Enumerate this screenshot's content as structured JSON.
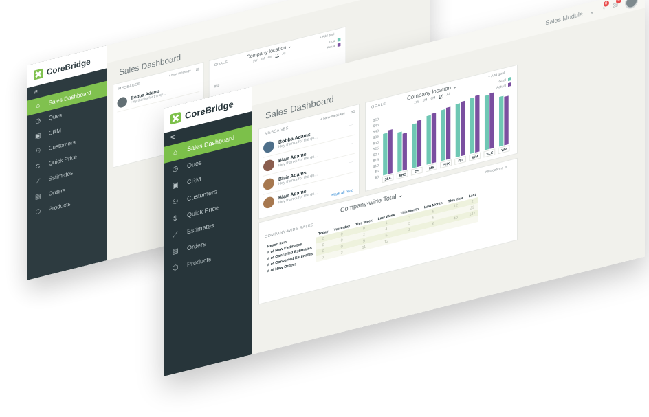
{
  "app": {
    "logo_text": "CoreBridge",
    "page_title": "Sales Dashboard"
  },
  "topbar": {
    "module_label": "Sales Module",
    "notif_count": "0",
    "msg_count": "4"
  },
  "nav": {
    "menu_icon": "hamburger-icon",
    "items": [
      {
        "label": "Sales Dashboard",
        "icon": "home-icon",
        "glyph": "⌂"
      },
      {
        "label": "Ques",
        "icon": "stopwatch-icon",
        "glyph": "◷"
      },
      {
        "label": "CRM",
        "icon": "id-card-icon",
        "glyph": "▣"
      },
      {
        "label": "Customers",
        "icon": "users-icon",
        "glyph": "⚇"
      },
      {
        "label": "Quick Price",
        "icon": "dollar-icon",
        "glyph": "$"
      },
      {
        "label": "Estimates",
        "icon": "line-chart-icon",
        "glyph": "⟋"
      },
      {
        "label": "Orders",
        "icon": "book-icon",
        "glyph": "▤"
      },
      {
        "label": "Products",
        "icon": "cube-icon",
        "glyph": "⬡"
      }
    ]
  },
  "messages": {
    "label": "MESSAGES",
    "new_message": "+ New message",
    "items": [
      {
        "name": "Bobba Adams",
        "text": "Hey thanks for the qu..."
      },
      {
        "name": "Blair Adams",
        "text": "Hey thanks for the qu..."
      },
      {
        "name": "Blair Adams",
        "text": "Hey thanks for the qu..."
      },
      {
        "name": "Blair Adams",
        "text": "Hey thanks for the qu..."
      }
    ],
    "mark_all_read": "Mark all read"
  },
  "goals": {
    "label": "GOALS",
    "header": "Company location",
    "add_goal": "+ Add goal",
    "tabs": [
      "1W",
      "1M",
      "6M",
      "1Y",
      "All"
    ],
    "selected_tab": "1Y",
    "legend": [
      "Goal",
      "Actual"
    ]
  },
  "colors": {
    "goal": "#6fc7b4",
    "actual": "#7b4fa0",
    "accent": "#7cc04a",
    "sidebar": "#27353a"
  },
  "chart_data": {
    "type": "bar",
    "categories": [
      "SLC",
      "BHS",
      "DS",
      "MS",
      "PHX",
      "RD",
      "WM",
      "SLC",
      "WP"
    ],
    "series": [
      {
        "name": "Goal",
        "values": [
          36,
          34,
          38,
          42,
          44,
          46,
          48,
          47,
          43
        ]
      },
      {
        "name": "Actual",
        "values": [
          38,
          32,
          40,
          43,
          45,
          47,
          49,
          48,
          42
        ]
      }
    ],
    "yticks": [
      "$50",
      "$45",
      "$40",
      "$35",
      "$30",
      "$25",
      "$20",
      "$15",
      "$10",
      "$5",
      "$0"
    ],
    "ylim": [
      0,
      50
    ]
  },
  "sales": {
    "label": "COMPANY-WIDE SALES",
    "title": "Company-wide Total",
    "all_locations": "All locations",
    "columns": [
      "Report Item",
      "Today",
      "Yesterday",
      "This Week",
      "Last Week",
      "This Month",
      "Last Month",
      "This Year",
      "Last"
    ],
    "rows": [
      {
        "label": "# of New Estimates",
        "values": [
          "0",
          "0",
          "0",
          "1",
          "3",
          "8",
          "12",
          "2"
        ]
      },
      {
        "label": "# of Cancelled Estimates",
        "values": [
          "0",
          "0",
          "2",
          "4",
          "5",
          "8",
          "",
          "29"
        ]
      },
      {
        "label": "# of Converted Estimates",
        "values": [
          "0",
          "0",
          "5",
          "5",
          "2",
          "6",
          "40",
          "147"
        ]
      },
      {
        "label": "# of New Orders",
        "values": [
          "1",
          "3",
          "11",
          "12",
          "",
          "",
          "",
          ""
        ]
      }
    ]
  },
  "back_screen": {
    "goals_tabs": [
      "1W",
      "1M",
      "6M",
      "1Y",
      "All"
    ],
    "y_first_tick": "$50"
  }
}
